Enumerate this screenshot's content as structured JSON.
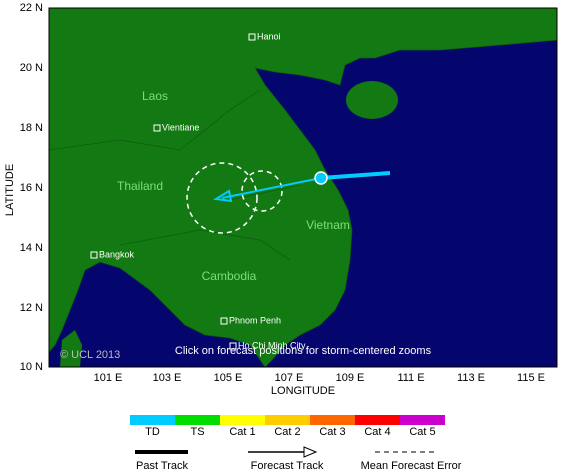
{
  "map": {
    "lat_labels": [
      "22 N",
      "20 N",
      "18 N",
      "16 N",
      "14 N",
      "12 N",
      "10 N"
    ],
    "lon_labels": [
      "101 E",
      "103 E",
      "105 E",
      "107 E",
      "109 E",
      "111 E",
      "113 E",
      "115 E"
    ],
    "y_axis_title": "LATITUDE",
    "x_axis_title": "LONGITUDE",
    "places": [
      "Hanoi",
      "Vientiane",
      "Bangkok",
      "Phnom Penh",
      "Ho Chi Minh City"
    ],
    "regions": [
      "Laos",
      "Thailand",
      "Vietnam",
      "Cambodia"
    ],
    "attribution": "© UCL 2013",
    "instruction": "Click on forecast positions for storm-centered zooms"
  },
  "legend": {
    "categories": [
      "TD",
      "TS",
      "Cat 1",
      "Cat 2",
      "Cat 3",
      "Cat 4",
      "Cat 5"
    ],
    "colors": [
      "#00ccff",
      "#00dd00",
      "#ffff00",
      "#ffcc00",
      "#ff6600",
      "#ff0000",
      "#cc00cc"
    ],
    "tracks": [
      "Past Track",
      "Forecast Track",
      "Mean Forecast Error"
    ]
  }
}
